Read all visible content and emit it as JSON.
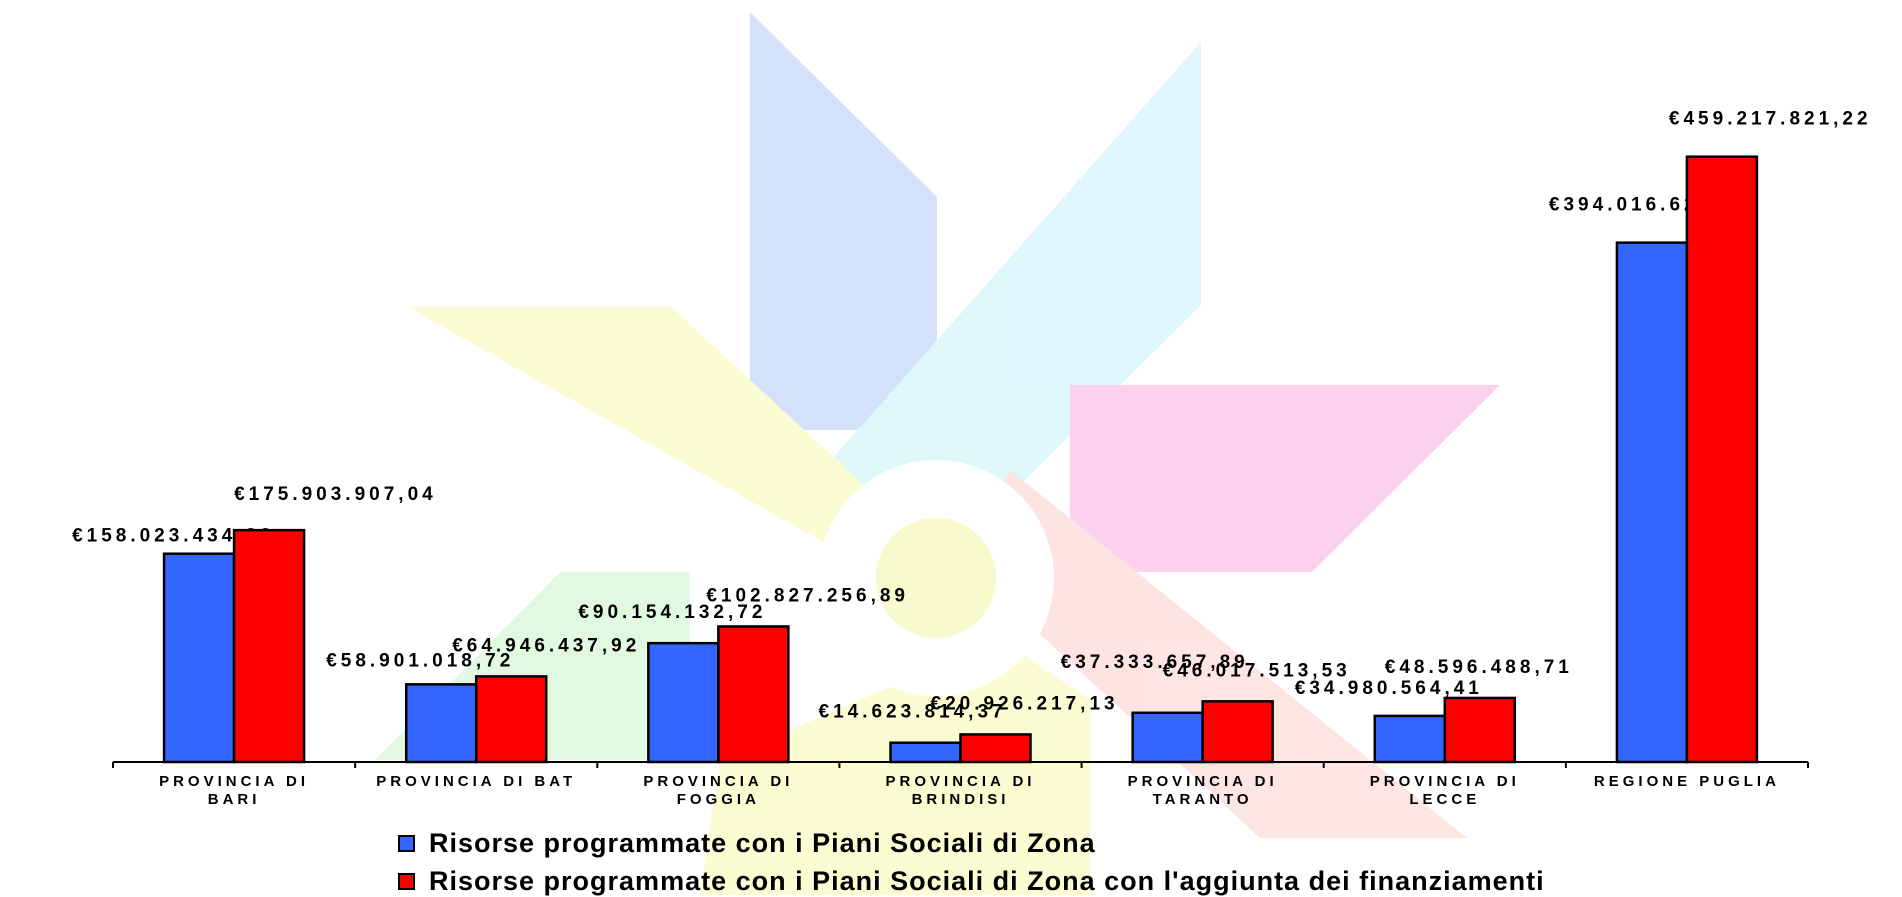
{
  "chart_data": {
    "type": "bar",
    "categories": [
      [
        "PROVINCIA DI",
        "BARI"
      ],
      [
        "PROVINCIA DI BAT"
      ],
      [
        "PROVINCIA DI",
        "FOGGIA"
      ],
      [
        "PROVINCIA DI",
        "BRINDISI"
      ],
      [
        "PROVINCIA DI",
        "TARANTO"
      ],
      [
        "PROVINCIA DI",
        "LECCE"
      ],
      [
        "REGIONE PUGLIA"
      ]
    ],
    "series": [
      {
        "name": "Risorse programmate con i Piani Sociali di Zona",
        "color": "#3366FF",
        "values": [
          158023434.92,
          58901018.72,
          90154132.72,
          14623814.37,
          37333657.89,
          34980564.41,
          394016623.02
        ],
        "labels": [
          "€158.023.434,92",
          "€58.901.018,72",
          "€90.154.132,72",
          "€14.623.814,37",
          "€37.333.657,89",
          "€34.980.564,41",
          "€394.016.623,02"
        ]
      },
      {
        "name": "Risorse programmate con i Piani Sociali di Zona con l'aggiunta dei finanziamenti",
        "color": "#FF0000",
        "values": [
          175903907.04,
          64946437.92,
          102827256.89,
          20926217.13,
          46017513.53,
          48596488.71,
          459217821.22
        ],
        "labels": [
          "€175.903.907,04",
          "€64.946.437,92",
          "€102.827.256,89",
          "€20.926.217,13",
          "€46.017.513,53",
          "€48.596.488,71",
          "€459.217.821,22"
        ]
      }
    ],
    "ylim": [
      0,
      525000000
    ],
    "grid": false,
    "legend_position": "bottom"
  },
  "legend": {
    "item1": "Risorse programmate con i Piani Sociali di Zona",
    "item2": "Risorse programmate con i Piani Sociali di Zona con l'aggiunta dei finanziamenti"
  }
}
